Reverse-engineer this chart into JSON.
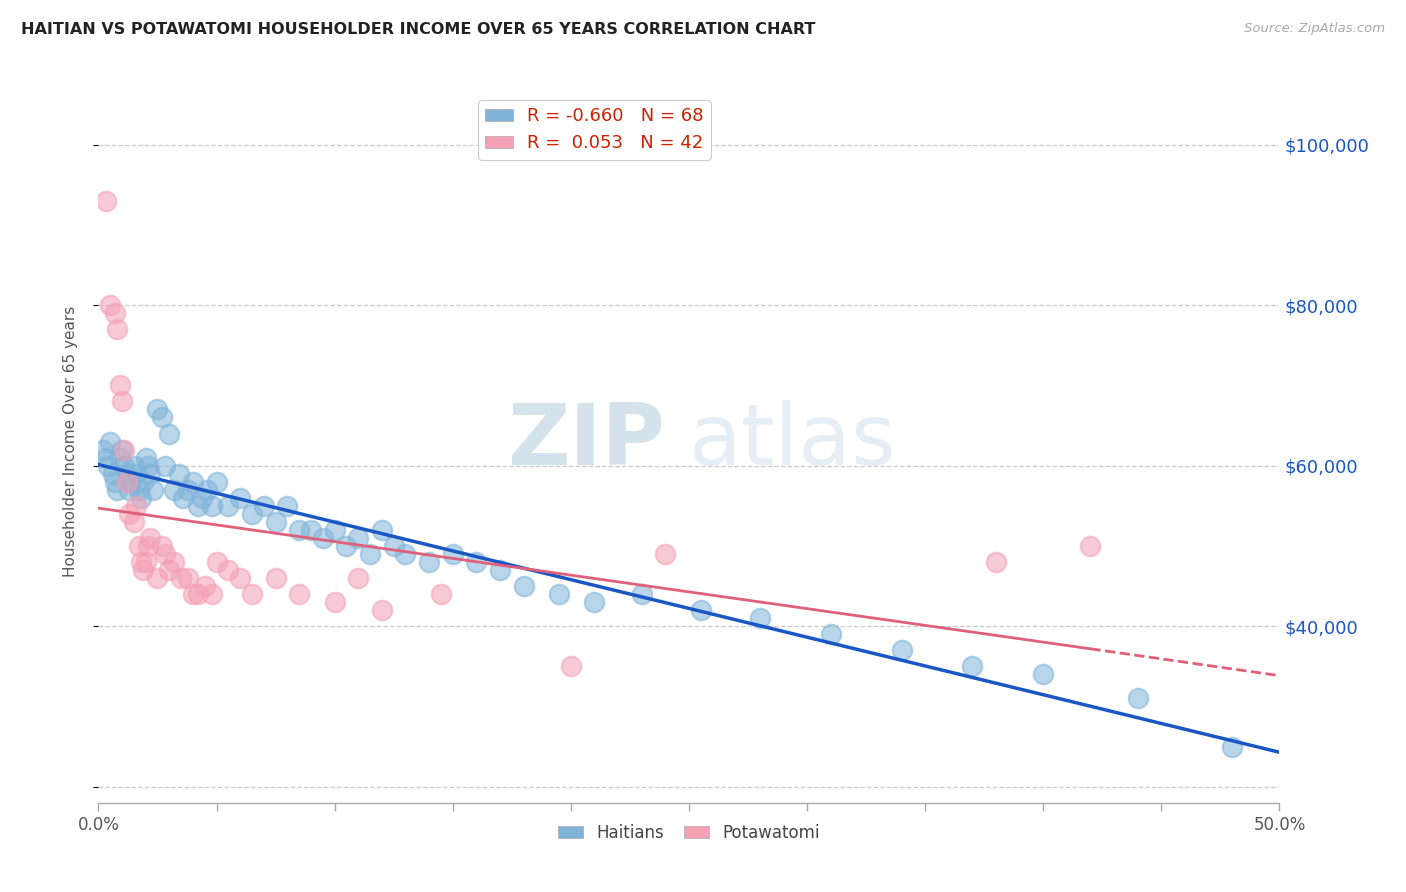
{
  "title": "HAITIAN VS POTAWATOMI HOUSEHOLDER INCOME OVER 65 YEARS CORRELATION CHART",
  "source": "Source: ZipAtlas.com",
  "ylabel": "Householder Income Over 65 years",
  "xlim": [
    0.0,
    0.5
  ],
  "ylim": [
    18000,
    108000
  ],
  "yticks": [
    20000,
    40000,
    60000,
    80000,
    100000
  ],
  "right_ytick_labels": [
    "",
    "$40,000",
    "$60,000",
    "$80,000",
    "$100,000"
  ],
  "xtick_positions": [
    0.0,
    0.05,
    0.1,
    0.15,
    0.2,
    0.25,
    0.3,
    0.35,
    0.4,
    0.45,
    0.5
  ],
  "xtick_labels_show": {
    "0.0": "0.0%",
    "0.5": "50.0%"
  },
  "haitian_color": "#7fb3d8",
  "potawatomi_color": "#f4a0b5",
  "haitian_line_color": "#1a56c4",
  "potawatomi_line_color": "#e0607a",
  "R_haitian": -0.66,
  "N_haitian": 68,
  "R_potawatomi": 0.053,
  "N_potawatomi": 42,
  "watermark_zip": "ZIP",
  "watermark_atlas": "atlas",
  "background_color": "#ffffff",
  "grid_color": "#cccccc",
  "haitian_x": [
    0.002,
    0.003,
    0.004,
    0.005,
    0.006,
    0.007,
    0.008,
    0.009,
    0.01,
    0.011,
    0.012,
    0.013,
    0.014,
    0.015,
    0.016,
    0.017,
    0.018,
    0.019,
    0.02,
    0.021,
    0.022,
    0.023,
    0.025,
    0.027,
    0.028,
    0.03,
    0.032,
    0.034,
    0.036,
    0.038,
    0.04,
    0.042,
    0.044,
    0.046,
    0.048,
    0.05,
    0.055,
    0.06,
    0.065,
    0.07,
    0.075,
    0.08,
    0.085,
    0.09,
    0.095,
    0.1,
    0.105,
    0.11,
    0.115,
    0.12,
    0.125,
    0.13,
    0.14,
    0.15,
    0.16,
    0.17,
    0.18,
    0.195,
    0.21,
    0.23,
    0.255,
    0.28,
    0.31,
    0.34,
    0.37,
    0.4,
    0.44,
    0.48
  ],
  "haitian_y": [
    62000,
    61000,
    60000,
    63000,
    59000,
    58000,
    57000,
    61000,
    62000,
    60000,
    59000,
    57000,
    58000,
    60000,
    59000,
    57000,
    56000,
    58000,
    61000,
    60000,
    59000,
    57000,
    67000,
    66000,
    60000,
    64000,
    57000,
    59000,
    56000,
    57000,
    58000,
    55000,
    56000,
    57000,
    55000,
    58000,
    55000,
    56000,
    54000,
    55000,
    53000,
    55000,
    52000,
    52000,
    51000,
    52000,
    50000,
    51000,
    49000,
    52000,
    50000,
    49000,
    48000,
    49000,
    48000,
    47000,
    45000,
    44000,
    43000,
    44000,
    42000,
    41000,
    39000,
    37000,
    35000,
    34000,
    31000,
    25000
  ],
  "potawatomi_x": [
    0.003,
    0.005,
    0.007,
    0.008,
    0.009,
    0.01,
    0.011,
    0.012,
    0.013,
    0.015,
    0.016,
    0.017,
    0.018,
    0.019,
    0.02,
    0.021,
    0.022,
    0.025,
    0.027,
    0.028,
    0.03,
    0.032,
    0.035,
    0.038,
    0.04,
    0.042,
    0.045,
    0.048,
    0.05,
    0.055,
    0.06,
    0.065,
    0.075,
    0.085,
    0.1,
    0.11,
    0.12,
    0.145,
    0.2,
    0.24,
    0.38,
    0.42
  ],
  "potawatomi_y": [
    93000,
    80000,
    79000,
    77000,
    70000,
    68000,
    62000,
    58000,
    54000,
    53000,
    55000,
    50000,
    48000,
    47000,
    48000,
    50000,
    51000,
    46000,
    50000,
    49000,
    47000,
    48000,
    46000,
    46000,
    44000,
    44000,
    45000,
    44000,
    48000,
    47000,
    46000,
    44000,
    46000,
    44000,
    43000,
    46000,
    42000,
    44000,
    35000,
    49000,
    48000,
    50000
  ]
}
